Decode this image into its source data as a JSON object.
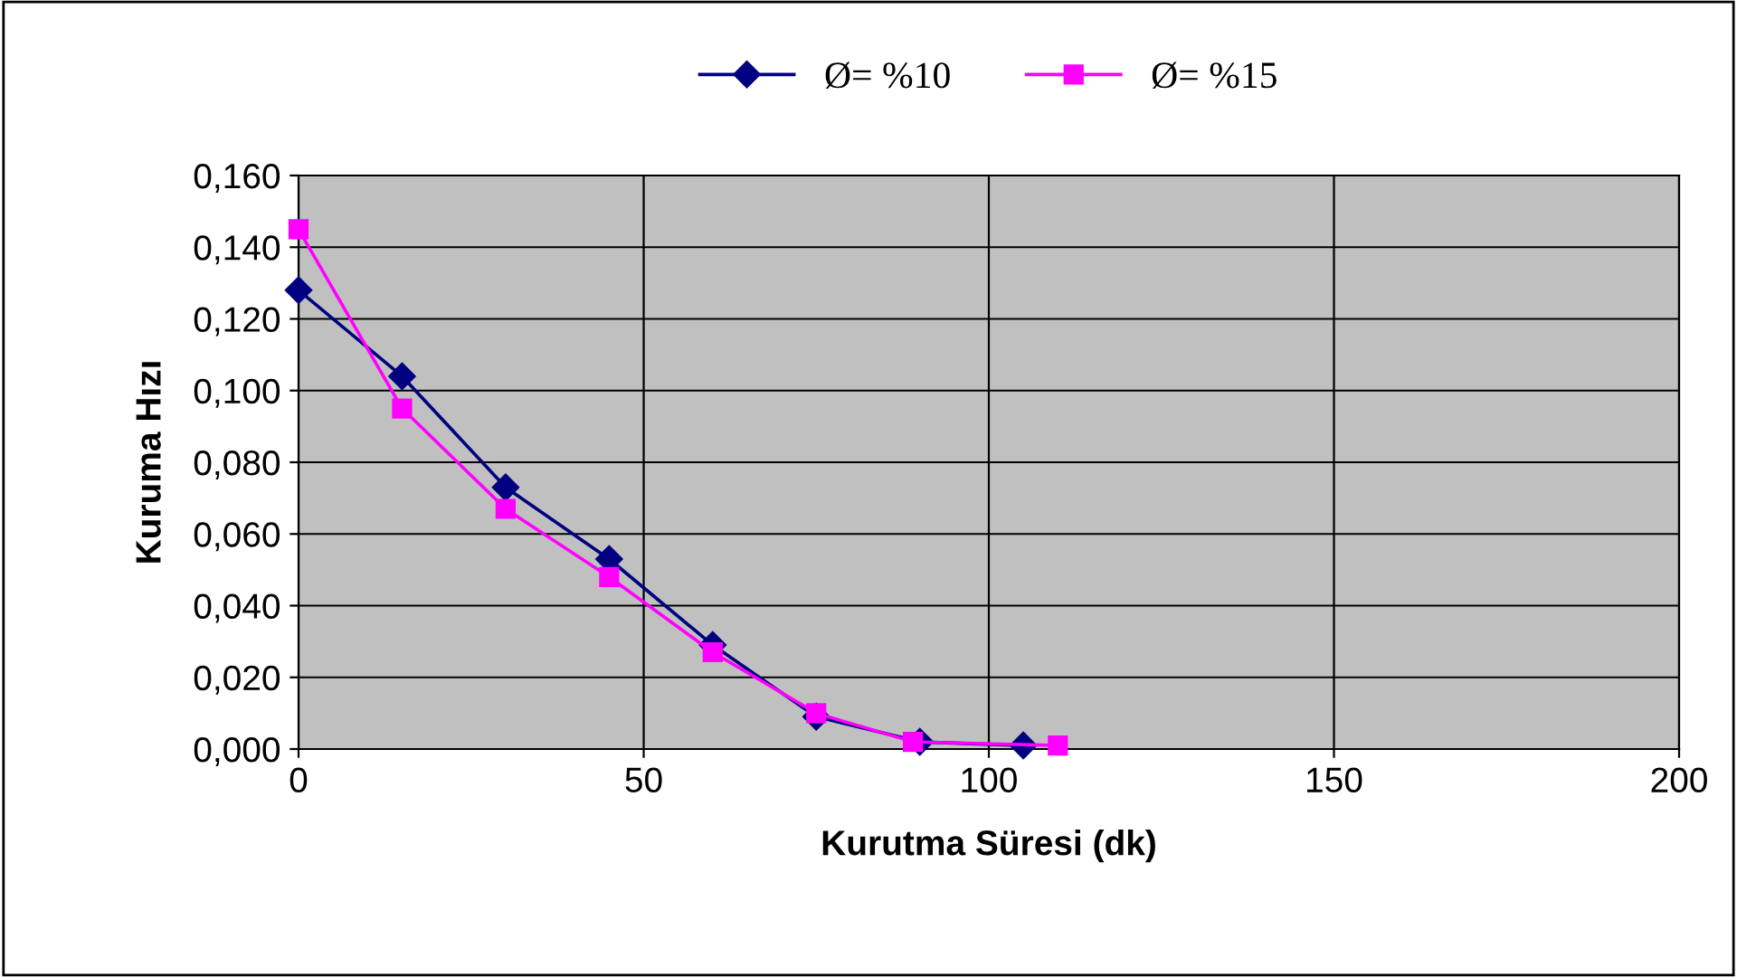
{
  "chart_data": {
    "type": "line",
    "xlabel": "Kurutma Süresi (dk)",
    "ylabel": "Kuruma Hızı",
    "series": [
      {
        "name": "Ø= %10",
        "color": "#000080",
        "marker": "diamond",
        "x": [
          0,
          15,
          30,
          45,
          60,
          75,
          90,
          105
        ],
        "values": [
          0.128,
          0.104,
          0.073,
          0.053,
          0.029,
          0.009,
          0.002,
          0.001
        ]
      },
      {
        "name": "Ø= %15",
        "color": "#ff00ff",
        "marker": "square",
        "x": [
          0,
          15,
          30,
          45,
          60,
          75,
          89,
          110
        ],
        "values": [
          0.145,
          0.095,
          0.067,
          0.048,
          0.027,
          0.01,
          0.002,
          0.001
        ]
      }
    ],
    "xlim": [
      0,
      200
    ],
    "xticks": [
      0,
      50,
      100,
      150,
      200
    ],
    "ylim": [
      0,
      0.16
    ],
    "yticks": [
      {
        "value": 0,
        "label": "0,000"
      },
      {
        "value": 0.02,
        "label": "0,020"
      },
      {
        "value": 0.04,
        "label": "0,040"
      },
      {
        "value": 0.06,
        "label": "0,060"
      },
      {
        "value": 0.08,
        "label": "0,080"
      },
      {
        "value": 0.1,
        "label": "0,100"
      },
      {
        "value": 0.12,
        "label": "0,120"
      },
      {
        "value": 0.14,
        "label": "0,140"
      },
      {
        "value": 0.16,
        "label": "0,160"
      }
    ],
    "grid": true,
    "legend": "top"
  }
}
